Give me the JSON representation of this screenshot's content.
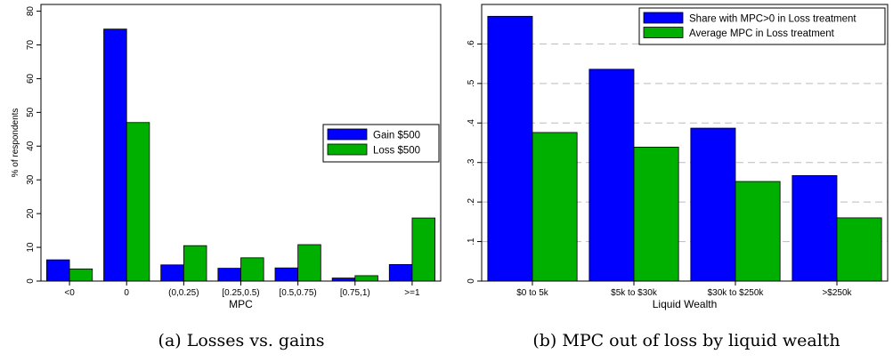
{
  "colors": {
    "blue": "#0000ff",
    "green": "#00b000"
  },
  "chart_data": [
    {
      "type": "bar",
      "caption": "(a) Losses vs. gains",
      "xlabel": "MPC",
      "ylabel": "% of respondents",
      "ylim": [
        0,
        82
      ],
      "yticks": [
        0,
        10,
        20,
        30,
        40,
        50,
        60,
        70,
        80
      ],
      "ytick_labels": [
        "0",
        "10",
        "20",
        "30",
        "40",
        "50",
        "60",
        "70",
        "80"
      ],
      "grid": false,
      "legend_position": "center-right",
      "categories": [
        "<0",
        "0",
        "(0,0.25)",
        "[0.25,0.5)",
        "[0.5,0.75)",
        "[0.75,1)",
        ">=1"
      ],
      "series": [
        {
          "name": "Gain $500",
          "color": "#0000ff",
          "values": [
            6.3,
            74.7,
            4.8,
            3.8,
            3.9,
            0.9,
            4.9
          ]
        },
        {
          "name": "Loss $500",
          "color": "#00b000",
          "values": [
            3.6,
            47.0,
            10.5,
            6.9,
            10.8,
            1.6,
            18.7
          ]
        }
      ]
    },
    {
      "type": "bar",
      "caption": "(b) MPC out of loss by liquid wealth",
      "xlabel": "Liquid Wealth",
      "ylabel": "",
      "ylim": [
        0,
        0.7
      ],
      "yticks": [
        0,
        0.1,
        0.2,
        0.3,
        0.4,
        0.5,
        0.6
      ],
      "ytick_labels": [
        "0",
        ".1",
        ".2",
        ".3",
        ".4",
        ".5",
        ".6"
      ],
      "grid": true,
      "legend_position": "top-right",
      "categories": [
        "$0 to 5k",
        "$5k to $30k",
        "$30k to $250k",
        ">$250k"
      ],
      "series": [
        {
          "name": "Share with MPC>0 in Loss treatment",
          "color": "#0000ff",
          "values": [
            0.67,
            0.536,
            0.387,
            0.267
          ]
        },
        {
          "name": "Average MPC in Loss treatment",
          "color": "#00b000",
          "values": [
            0.376,
            0.339,
            0.252,
            0.16
          ]
        }
      ]
    }
  ]
}
